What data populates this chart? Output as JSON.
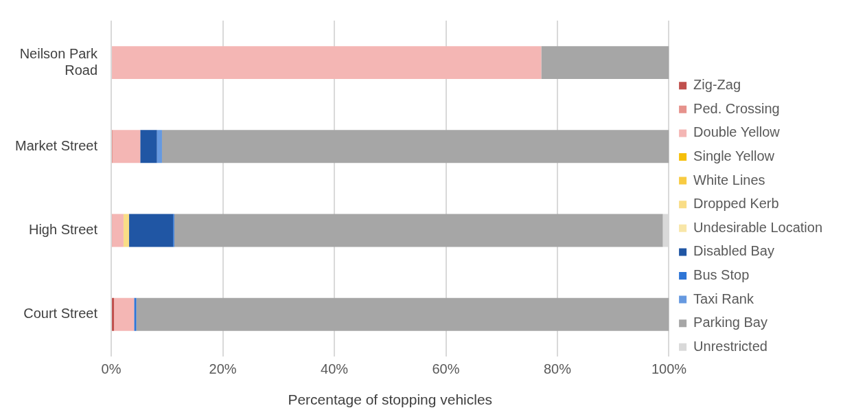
{
  "chart_data": {
    "type": "bar",
    "orientation": "horizontal",
    "stacked": true,
    "xlabel": "Percentage of stopping vehicles",
    "categories": [
      "Neilson Park Road",
      "Market Street",
      "High Street",
      "Court Street"
    ],
    "xlim": [
      0,
      100
    ],
    "xticks": [
      {
        "value": 0,
        "label": "0%"
      },
      {
        "value": 20,
        "label": "20%"
      },
      {
        "value": 40,
        "label": "40%"
      },
      {
        "value": 60,
        "label": "60%"
      },
      {
        "value": 80,
        "label": "80%"
      },
      {
        "value": 100,
        "label": "100%"
      }
    ],
    "grid": "x",
    "legend": "right",
    "series": [
      {
        "name": "Zig-Zag",
        "color": "#c0504d",
        "values": [
          null,
          null,
          null,
          0.5
        ]
      },
      {
        "name": "Ped. Crossing",
        "color": "#e6928c",
        "values": [
          null,
          0.3,
          0.2,
          null
        ]
      },
      {
        "name": "Double Yellow",
        "color": "#f4b6b4",
        "values": [
          77.1,
          4.9,
          2.0,
          3.6
        ]
      },
      {
        "name": "Single Yellow",
        "color": "#f5bf0a",
        "values": [
          null,
          null,
          null,
          null
        ]
      },
      {
        "name": "White Lines",
        "color": "#f8cb42",
        "values": [
          null,
          null,
          null,
          null
        ]
      },
      {
        "name": "Dropped Kerb",
        "color": "#f9dd86",
        "values": [
          null,
          null,
          1.0,
          null
        ]
      },
      {
        "name": "Undesirable Location",
        "color": "#f8e6a8",
        "values": [
          null,
          null,
          null,
          null
        ]
      },
      {
        "name": "Disabled Bay",
        "color": "#2056a4",
        "values": [
          null,
          3.0,
          7.9,
          null
        ]
      },
      {
        "name": "Bus Stop",
        "color": "#2e75d6",
        "values": [
          null,
          null,
          0.2,
          0.4
        ]
      },
      {
        "name": "Taxi Rank",
        "color": "#6699e0",
        "values": [
          null,
          0.9,
          null,
          null
        ]
      },
      {
        "name": "Parking Bay",
        "color": "#a6a6a6",
        "values": [
          22.9,
          90.9,
          87.6,
          95.5
        ]
      },
      {
        "name": "Unrestricted",
        "color": "#d9d9d9",
        "values": [
          null,
          null,
          1.1,
          null
        ]
      }
    ]
  }
}
